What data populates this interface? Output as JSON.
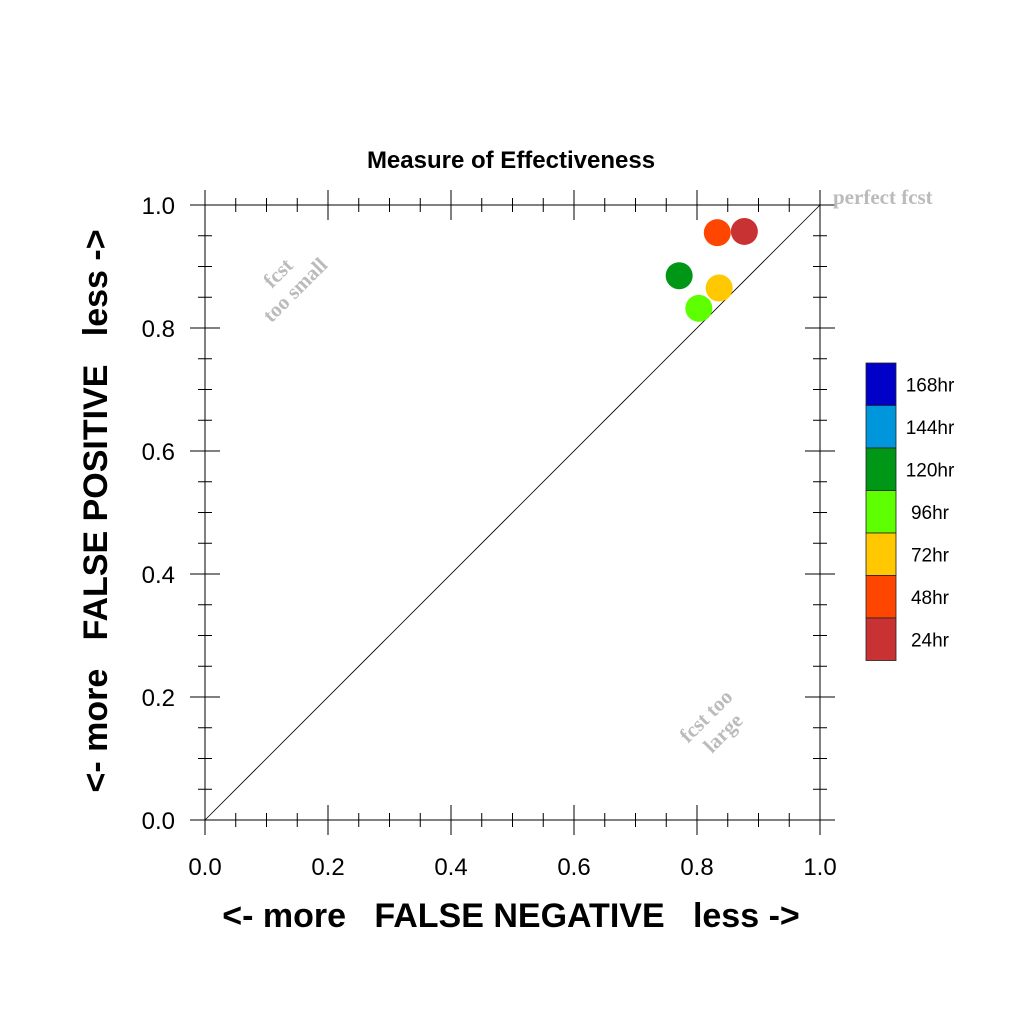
{
  "chart_data": {
    "type": "scatter",
    "title": "Measure of Effectiveness",
    "xlabel": "<- more   FALSE NEGATIVE   less ->",
    "ylabel": "<- more   FALSE POSITIVE   less ->",
    "xlim": [
      0.0,
      1.0
    ],
    "ylim": [
      0.0,
      1.0
    ],
    "x_ticks": [
      "0.0",
      "0.2",
      "0.4",
      "0.6",
      "0.8",
      "1.0"
    ],
    "y_ticks": [
      "0.0",
      "0.2",
      "0.4",
      "0.6",
      "0.8",
      "1.0"
    ],
    "grid": false,
    "diagonal_line": true,
    "legend_position": "right",
    "annotations": {
      "perfect": "perfect fcst",
      "too_small_line1": "fcst",
      "too_small_line2": "too small",
      "too_large_line1": "fcst too",
      "too_large_line2": "large"
    },
    "legend": [
      {
        "label": "168hr",
        "color": "#0000c8"
      },
      {
        "label": "144hr",
        "color": "#0096dc"
      },
      {
        "label": "120hr",
        "color": "#009616"
      },
      {
        "label": "96hr",
        "color": "#5eff00"
      },
      {
        "label": "72hr",
        "color": "#ffc800"
      },
      {
        "label": "48hr",
        "color": "#ff4600"
      },
      {
        "label": "24hr",
        "color": "#c83232"
      }
    ],
    "series": [
      {
        "name": "24hr",
        "x": 0.877,
        "y": 0.957,
        "color": "#c83232"
      },
      {
        "name": "48hr",
        "x": 0.833,
        "y": 0.955,
        "color": "#ff4600"
      },
      {
        "name": "120hr",
        "x": 0.771,
        "y": 0.885,
        "color": "#009616"
      },
      {
        "name": "72hr",
        "x": 0.836,
        "y": 0.865,
        "color": "#ffc800"
      },
      {
        "name": "96hr",
        "x": 0.803,
        "y": 0.832,
        "color": "#5eff00"
      }
    ]
  }
}
